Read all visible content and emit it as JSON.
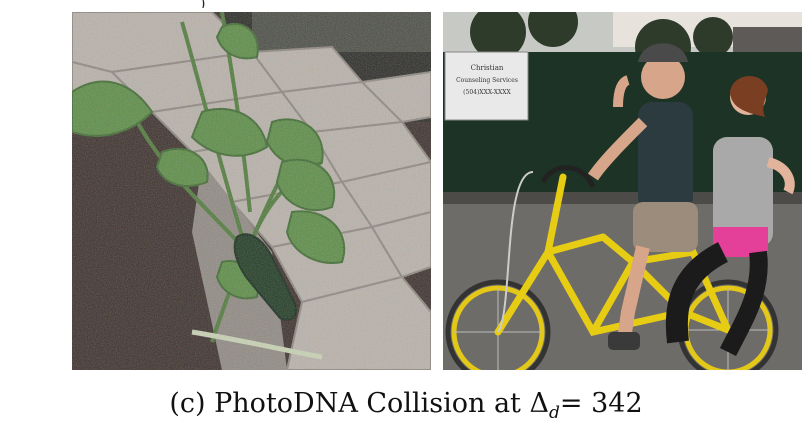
{
  "figure": {
    "panel_letter_fragment": "(c)",
    "caption": {
      "prefix": "(c) PhotoDNA Collision at ",
      "delta_symbol": "Δ",
      "delta_subscript": "d",
      "equals": "= ",
      "value": "342"
    },
    "left_image": {
      "subject": "zucchini plant beside brick garden wall"
    },
    "right_image": {
      "subject": "two people riding a yellow tandem bicycle",
      "sign_text": [
        "Christian",
        "Counseling Services",
        "(504)XXX-XXXX"
      ]
    }
  }
}
